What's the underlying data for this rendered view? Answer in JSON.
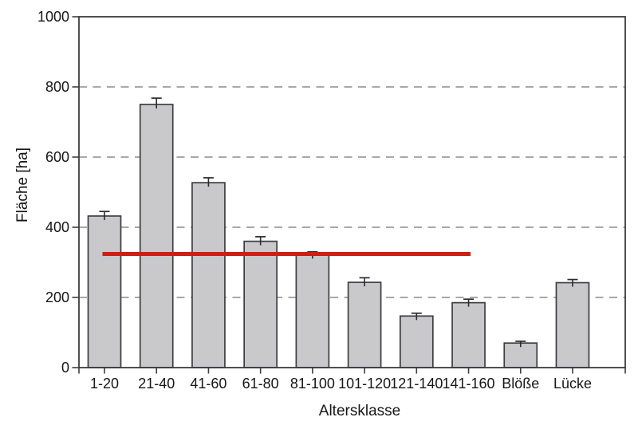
{
  "chart_data": {
    "type": "bar",
    "title": "",
    "xlabel": "Altersklasse",
    "ylabel": "Fläche [ha]",
    "categories": [
      "1-20",
      "21-40",
      "41-60",
      "61-80",
      "81-100",
      "101-120",
      "121-140",
      "141-160",
      "Blöße",
      "Lücke"
    ],
    "values": [
      432,
      750,
      527,
      360,
      322,
      243,
      147,
      185,
      70,
      242
    ],
    "errors_plus": [
      13,
      18,
      14,
      13,
      8,
      13,
      8,
      10,
      5,
      9
    ],
    "ylim": [
      0,
      1000
    ],
    "yticks": [
      0,
      200,
      400,
      600,
      800,
      1000
    ],
    "ytick_labels": [
      "0",
      "200",
      "400",
      "600",
      "800",
      "1000"
    ],
    "grid_values": [
      200,
      400,
      600,
      800
    ],
    "grid_style": "dashed-horizontal",
    "legend": "none",
    "frame": "full-box",
    "reference_line": {
      "value": 324,
      "from_category": "1-20",
      "to_category": "141-160",
      "color": "#cc1f15"
    },
    "colors": {
      "bar_fill": "#c9c9cc",
      "bar_stroke": "#3d3d40",
      "axis": "#3d3d40",
      "grid": "#8b8b8b",
      "error_bar": "#2b2b2d",
      "text": "#161616",
      "background": "#ffffff",
      "reference_line": "#cc1f15"
    }
  }
}
